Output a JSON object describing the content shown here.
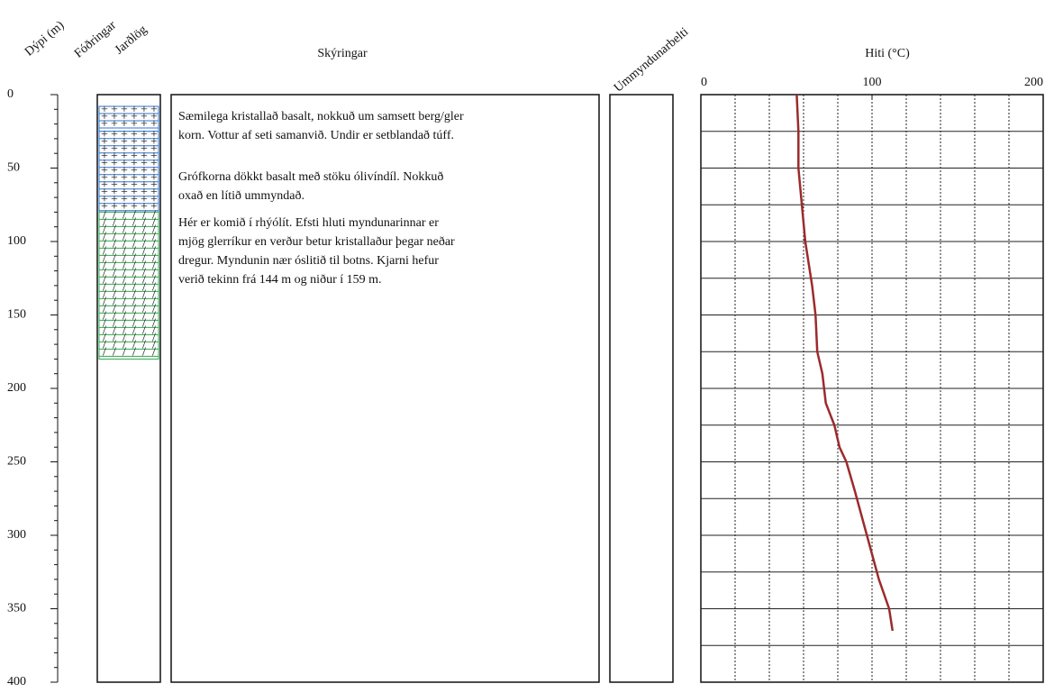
{
  "chart_data": {
    "type": "line",
    "depth_label": "Dýpi (m)",
    "casing_label": "Fóðringar",
    "strata_label": "Jarðlög",
    "notes_label": "Skýringar",
    "alteration_label": "Ummyndunarbelti",
    "title": "Hiti (°C)",
    "ylim": [
      0,
      400
    ],
    "yticks": [
      0,
      50,
      100,
      150,
      200,
      250,
      300,
      350,
      400
    ],
    "xlim": [
      0,
      200
    ],
    "xticks": [
      0,
      100,
      200
    ],
    "xgrid_step": 20,
    "ygrid_step": 25,
    "color": "#9b2b2b",
    "depth": [
      0,
      25,
      50,
      75,
      100,
      130,
      150,
      175,
      190,
      210,
      225,
      240,
      250,
      270,
      300,
      330,
      350,
      365
    ],
    "values": [
      56,
      57,
      57,
      59,
      61,
      65,
      67,
      68,
      71,
      73,
      78,
      81,
      85,
      90,
      97,
      104,
      110,
      112
    ],
    "lithology": [
      {
        "top": 8,
        "bottom": 25,
        "color": "#2f74d0"
      },
      {
        "top": 25,
        "bottom": 80,
        "color": "#2f74d0"
      },
      {
        "top": 80,
        "bottom": 180,
        "color": "#2ea84c"
      }
    ],
    "descriptions": [
      [
        "Sæmilega kristallað basalt, nokkuð um samsett berg/gler",
        "korn. Vottur af seti samanvið. Undir er setblandað túff."
      ],
      [
        "Grófkorna dökkt basalt með stöku ólivíndíl. Nokkuð",
        "oxað en lítið ummyndað."
      ],
      [
        "Hér er komið í rhýólít. Efsti hluti myndunarinnar er",
        "mjög glerríkur en verður betur kristallaður þegar neðar",
        "dregur. Myndunin nær óslitið til botns. Kjarni hefur",
        "verið tekinn frá 144 m og niður í 159 m."
      ]
    ]
  }
}
